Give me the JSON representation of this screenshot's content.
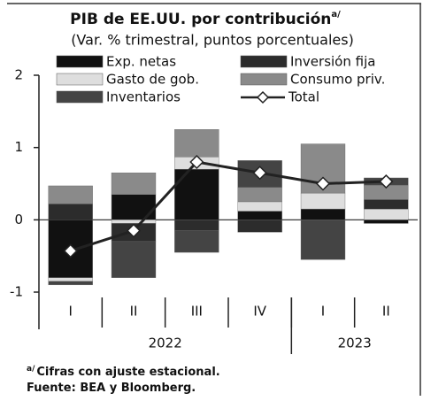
{
  "chart_data": {
    "type": "stacked_bar_line",
    "title": "PIB de EE.UU. por contribución",
    "title_note": "a/",
    "subtitle": "(Var. % trimestral, puntos porcentuales)",
    "categories": [
      "I",
      "II",
      "III",
      "IV",
      "I",
      "II"
    ],
    "groups": [
      {
        "label": "2022",
        "count": 4
      },
      {
        "label": "2023",
        "count": 2
      }
    ],
    "series": [
      {
        "name": "Exp. netas",
        "color": "#111111",
        "values": [
          -0.8,
          0.35,
          0.7,
          0.12,
          0.15,
          -0.05
        ]
      },
      {
        "name": "Gasto de gob.",
        "color": "#dedede",
        "values": [
          -0.05,
          -0.05,
          0.17,
          0.13,
          0.22,
          0.15
        ]
      },
      {
        "name": "Inversión fija",
        "color": "#2c2c2c",
        "values": [
          0.22,
          -0.25,
          -0.15,
          -0.17,
          0,
          0.13
        ]
      },
      {
        "name": "Consumo priv.",
        "color": "#8a8a8a",
        "values": [
          0.25,
          0.3,
          0.38,
          0.2,
          0.68,
          0.2
        ]
      },
      {
        "name": "Inventarios",
        "color": "#444444",
        "values": [
          -0.05,
          -0.5,
          -0.3,
          0.37,
          -0.55,
          0.1
        ]
      }
    ],
    "line": {
      "name": "Total",
      "color": "#222222",
      "values": [
        -0.43,
        -0.15,
        0.8,
        0.65,
        0.5,
        0.53
      ]
    },
    "ylim": [
      -1,
      2
    ],
    "yticks": [
      -1,
      0,
      1,
      2
    ],
    "footnotes": [
      {
        "marker": "a/",
        "text": "Cifras con ajuste estacional."
      },
      {
        "text": "Fuente: BEA y Bloomberg."
      }
    ]
  }
}
